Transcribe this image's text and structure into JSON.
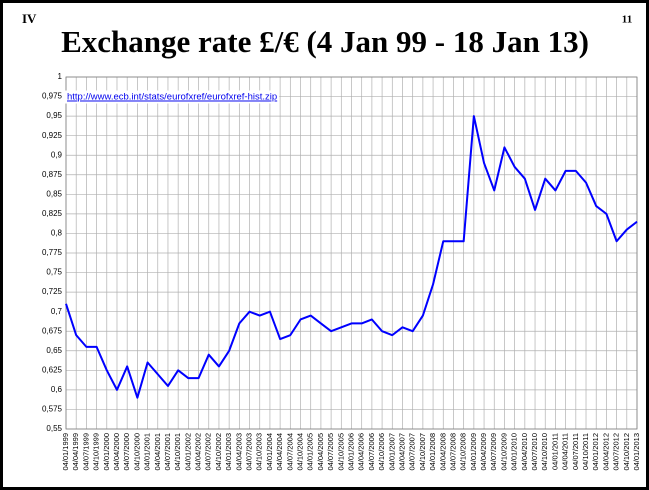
{
  "chart_data": {
    "type": "line",
    "corner_left": "IV",
    "corner_right": "11",
    "title": "Exchange rate £/€ (4 Jan 99 - 18 Jan 13)",
    "source": "http://www.ecb.int/stats/eurofxref/eurofxref-hist.zip",
    "categories": [
      "04/01/1999",
      "04/04/1999",
      "04/07/1999",
      "04/10/1999",
      "04/01/2000",
      "04/04/2000",
      "04/07/2000",
      "04/10/2000",
      "04/01/2001",
      "04/04/2001",
      "04/07/2001",
      "04/10/2001",
      "04/01/2002",
      "04/04/2002",
      "04/07/2002",
      "04/10/2002",
      "04/01/2003",
      "04/04/2003",
      "04/07/2003",
      "04/10/2003",
      "04/01/2004",
      "04/04/2004",
      "04/07/2004",
      "04/10/2004",
      "04/01/2005",
      "04/04/2005",
      "04/07/2005",
      "04/10/2005",
      "04/01/2006",
      "04/04/2006",
      "04/07/2006",
      "04/10/2006",
      "04/01/2007",
      "04/04/2007",
      "04/07/2007",
      "04/10/2007",
      "04/01/2008",
      "04/04/2008",
      "04/07/2008",
      "04/10/2008",
      "04/01/2009",
      "04/04/2009",
      "04/07/2009",
      "04/10/2009",
      "04/01/2010",
      "04/04/2010",
      "04/07/2010",
      "04/10/2010",
      "04/01/2011",
      "04/04/2011",
      "04/07/2011",
      "04/10/2011",
      "04/01/2012",
      "04/04/2012",
      "04/07/2012",
      "04/10/2012",
      "04/01/2013"
    ],
    "series": [
      {
        "color": "#0000ff",
        "values": [
          0.71,
          0.67,
          0.655,
          0.655,
          0.625,
          0.6,
          0.63,
          0.59,
          0.635,
          0.62,
          0.605,
          0.625,
          0.615,
          0.615,
          0.645,
          0.63,
          0.65,
          0.685,
          0.7,
          0.695,
          0.7,
          0.665,
          0.67,
          0.69,
          0.695,
          0.685,
          0.675,
          0.68,
          0.685,
          0.685,
          0.69,
          0.675,
          0.67,
          0.68,
          0.675,
          0.695,
          0.735,
          0.79,
          0.79,
          0.79,
          0.95,
          0.89,
          0.855,
          0.91,
          0.885,
          0.87,
          0.83,
          0.87,
          0.855,
          0.88,
          0.88,
          0.865,
          0.835,
          0.825,
          0.79,
          0.805,
          0.815
        ]
      }
    ],
    "ylim": [
      0.55,
      1
    ],
    "yticks": [
      {
        "value": 0.55,
        "label": "0,55"
      },
      {
        "value": 0.575,
        "label": "0,575"
      },
      {
        "value": 0.6,
        "label": "0,6"
      },
      {
        "value": 0.625,
        "label": "0,625"
      },
      {
        "value": 0.65,
        "label": "0,65"
      },
      {
        "value": 0.675,
        "label": "0,675"
      },
      {
        "value": 0.7,
        "label": "0,7"
      },
      {
        "value": 0.725,
        "label": "0,725"
      },
      {
        "value": 0.75,
        "label": "0,75"
      },
      {
        "value": 0.775,
        "label": "0,775"
      },
      {
        "value": 0.8,
        "label": "0,8"
      },
      {
        "value": 0.825,
        "label": "0,825"
      },
      {
        "value": 0.85,
        "label": "0,85"
      },
      {
        "value": 0.875,
        "label": "0,875"
      },
      {
        "value": 0.9,
        "label": "0,9"
      },
      {
        "value": 0.925,
        "label": "0,925"
      },
      {
        "value": 0.95,
        "label": "0,95"
      },
      {
        "value": 0.975,
        "label": "0,975"
      },
      1
    ],
    "grid": true
  }
}
